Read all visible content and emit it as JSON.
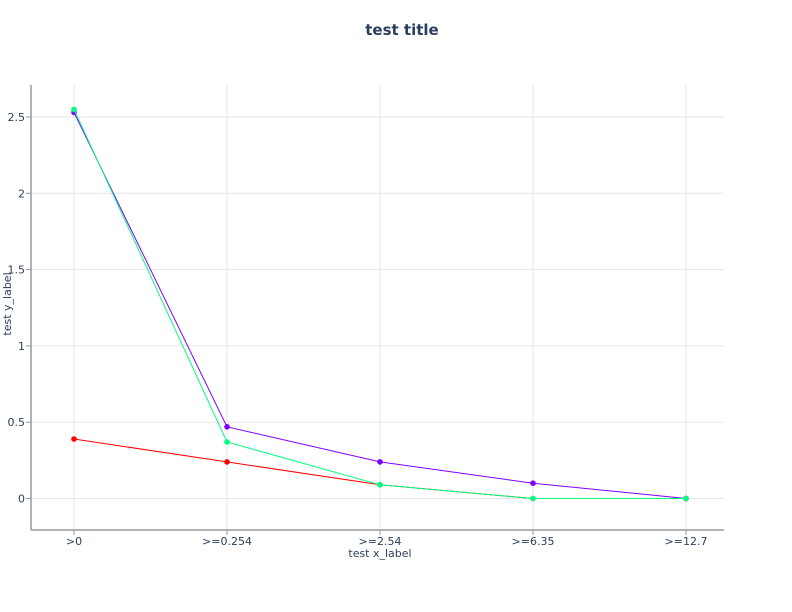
{
  "chart_data": {
    "type": "line",
    "title": "test title",
    "xlabel": "test x_label",
    "ylabel": "test y_label",
    "categories": [
      ">0",
      ">=0.254",
      ">=2.54",
      ">=6.35",
      ">=12.7"
    ],
    "ylim": [
      -0.2,
      2.7
    ],
    "yticks": [
      0,
      0.5,
      1,
      1.5,
      2,
      2.5
    ],
    "ytick_labels": [
      "0",
      "0.5",
      "1",
      "1.5",
      "2",
      "2.5"
    ],
    "grid": true,
    "series": [
      {
        "color": "#ff0000",
        "values": [
          0.39,
          0.24,
          0.09,
          0.0,
          0.0
        ]
      },
      {
        "color": "#7f00ff",
        "values": [
          2.53,
          0.47,
          0.24,
          0.1,
          0.0
        ]
      },
      {
        "color": "#00ff7f",
        "values": [
          2.55,
          0.37,
          0.09,
          0.0,
          0.0
        ]
      }
    ]
  }
}
